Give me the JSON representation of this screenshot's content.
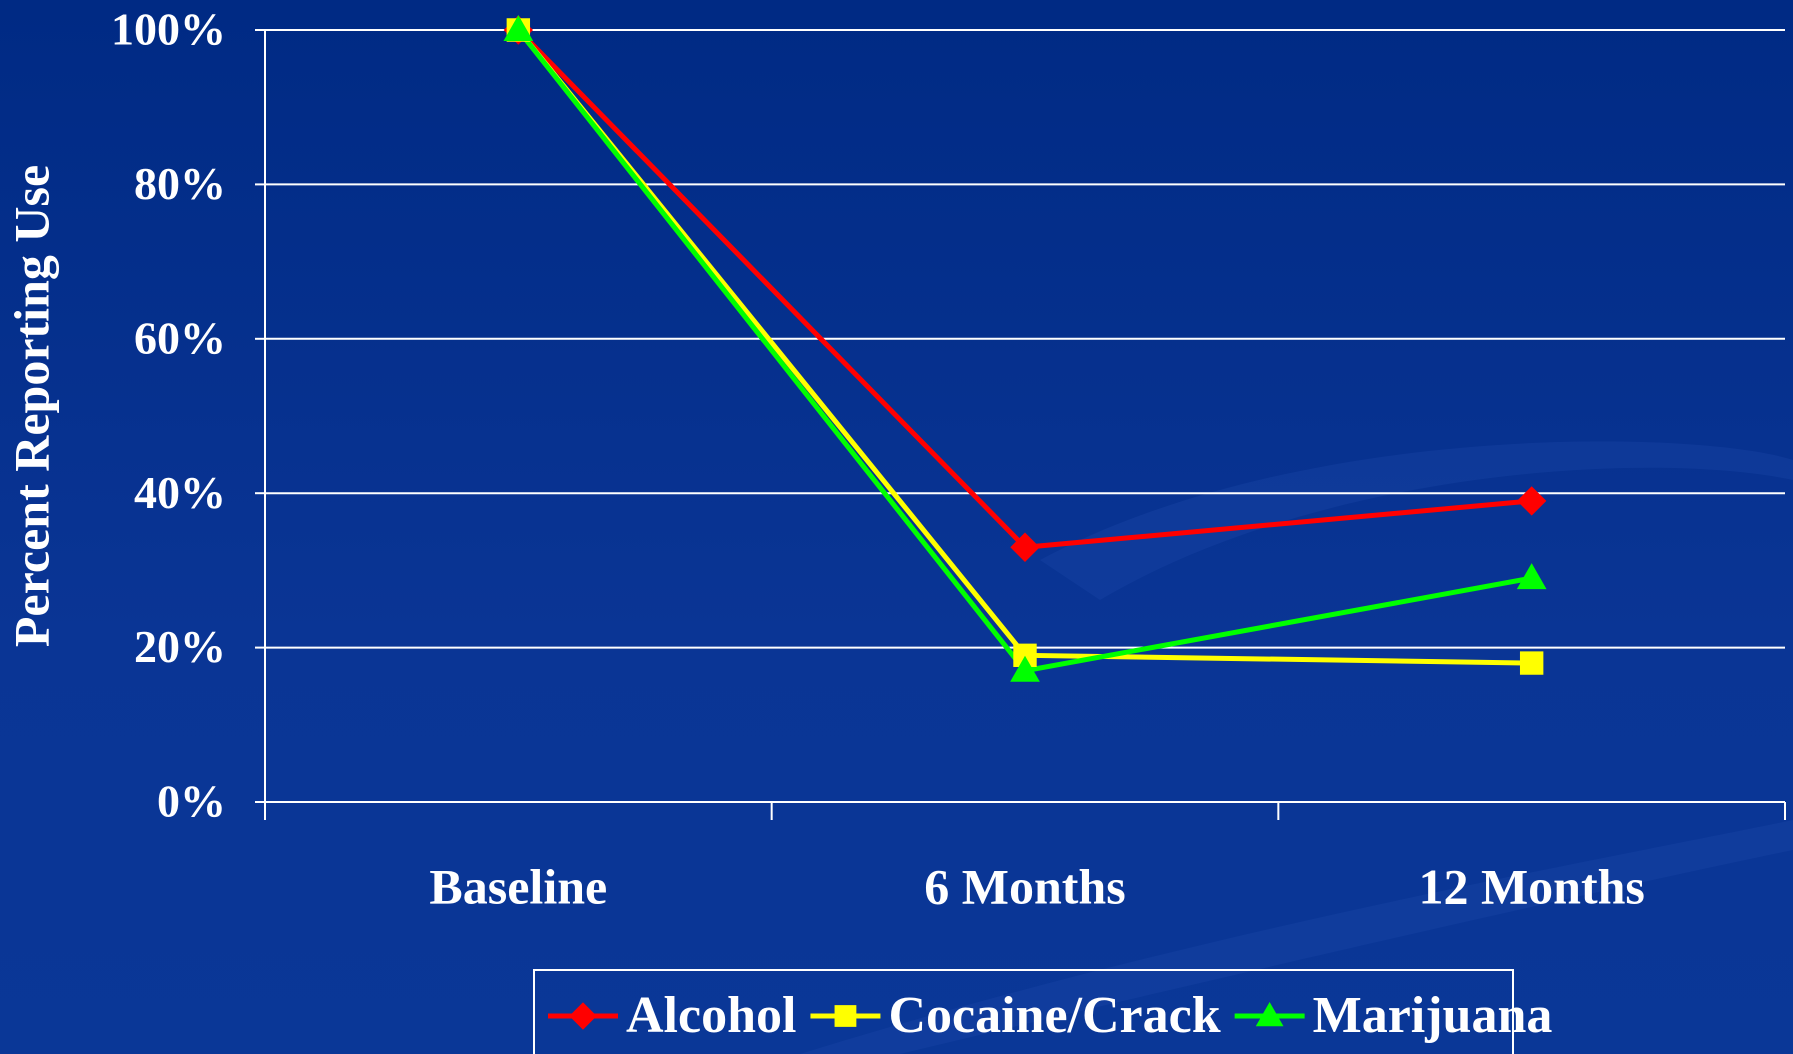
{
  "chart_data": {
    "type": "line",
    "y_label": "Percent Reporting Use",
    "categories": [
      "Baseline",
      "6 Months",
      "12 Months"
    ],
    "series": [
      {
        "name": "Alcohol",
        "color": "#ff0000",
        "marker": "diamond",
        "values": [
          100,
          33,
          39
        ]
      },
      {
        "name": "Cocaine/Crack",
        "color": "#ffff00",
        "marker": "square",
        "values": [
          100,
          19,
          18
        ]
      },
      {
        "name": "Marijuana",
        "color": "#00ff00",
        "marker": "triangle",
        "values": [
          100,
          17,
          29
        ]
      }
    ],
    "ylim": [
      0,
      100
    ],
    "yticks": [
      {
        "value": 0,
        "label": "0%"
      },
      {
        "value": 20,
        "label": "20%"
      },
      {
        "value": 40,
        "label": "40%"
      },
      {
        "value": 60,
        "label": "60%"
      },
      {
        "value": 80,
        "label": "80%"
      },
      {
        "value": 100,
        "label": "100%"
      }
    ],
    "grid": true,
    "legend": "bottom"
  }
}
